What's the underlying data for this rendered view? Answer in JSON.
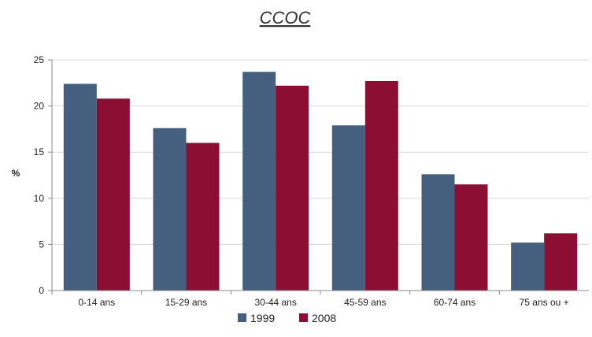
{
  "chart_data": {
    "type": "bar",
    "title": "CCOC",
    "xlabel": "",
    "ylabel": "%",
    "categories": [
      "0-14 ans",
      "15-29 ans",
      "30-44 ans",
      "45-59 ans",
      "60-74 ans",
      "75 ans ou +"
    ],
    "series": [
      {
        "name": "1999",
        "values": [
          22.4,
          17.6,
          23.7,
          17.9,
          12.6,
          5.2
        ],
        "color": "#45607f"
      },
      {
        "name": "2008",
        "values": [
          20.8,
          16.0,
          22.2,
          22.7,
          11.5,
          6.2
        ],
        "color": "#8c0e33"
      }
    ],
    "ylim": [
      0,
      25
    ],
    "yticks": [
      0,
      5,
      10,
      15,
      20,
      25
    ],
    "grid": true,
    "legend_position": "bottom-center"
  }
}
